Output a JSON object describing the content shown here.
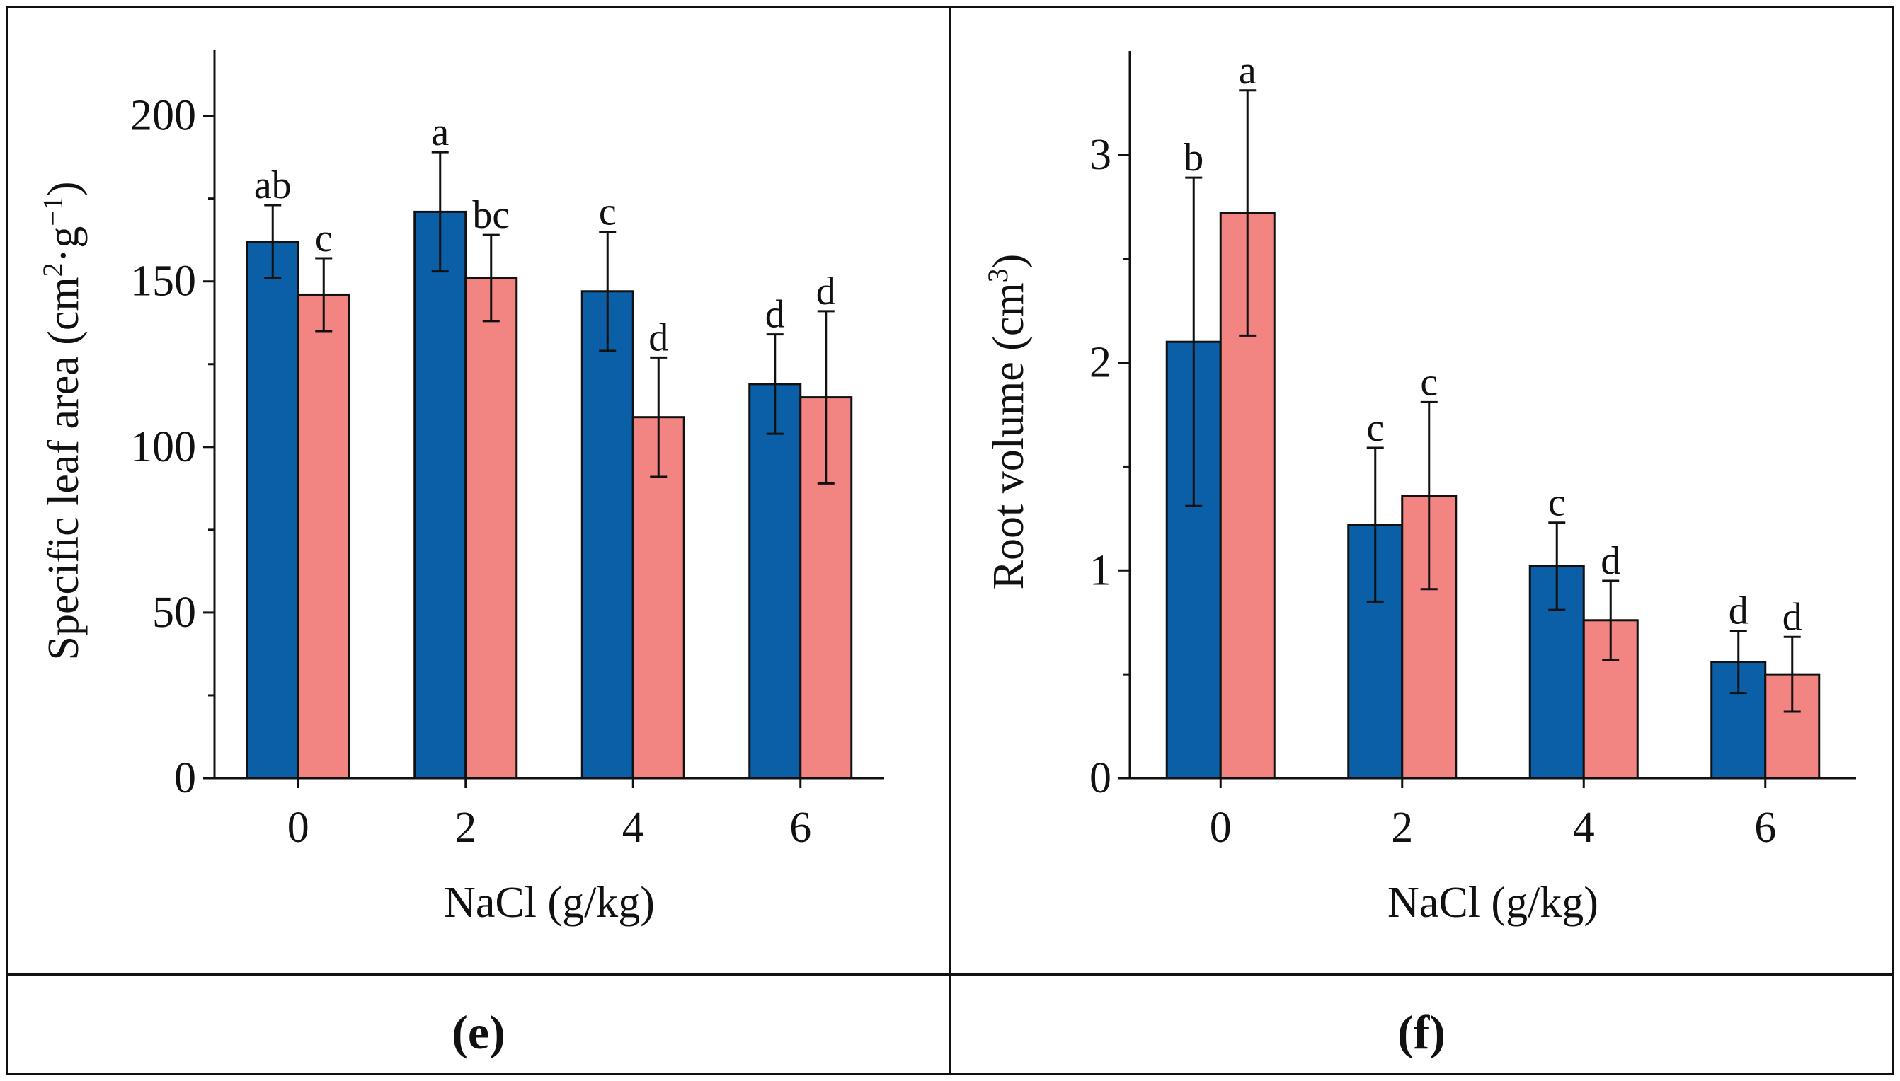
{
  "chart_data": [
    {
      "type": "bar",
      "panel_label": "(e)",
      "xlabel": "NaCl (g/kg)",
      "ylabel": {
        "prefix": "Specific leaf area (cm",
        "sup1": "2",
        "middle": "·g",
        "sup2": "−1",
        "suffix": ")"
      },
      "categories": [
        "0",
        "2",
        "4",
        "6"
      ],
      "ylim": [
        0,
        220
      ],
      "yticks": [
        0,
        50,
        100,
        150,
        200
      ],
      "yticks_labels": [
        "0",
        "50",
        "100",
        "150",
        "200"
      ],
      "series": [
        {
          "name": "series-blue",
          "color": "#0a5fa6",
          "values": [
            162,
            171,
            147,
            119
          ],
          "errors": [
            11,
            18,
            18,
            15
          ],
          "labels": [
            "ab",
            "a",
            "c",
            "d"
          ]
        },
        {
          "name": "series-pink",
          "color": "#f28482",
          "values": [
            146,
            151,
            109,
            115
          ],
          "errors": [
            11,
            13,
            18,
            26
          ],
          "labels": [
            "c",
            "bc",
            "d",
            "d"
          ]
        }
      ]
    },
    {
      "type": "bar",
      "panel_label": "(f)",
      "xlabel": "NaCl (g/kg)",
      "ylabel": {
        "prefix": "Root volume (cm",
        "sup1": "3",
        "middle": "",
        "sup2": "",
        "suffix": ")"
      },
      "categories": [
        "0",
        "2",
        "4",
        "6"
      ],
      "ylim": [
        0,
        3.5
      ],
      "yticks": [
        0,
        1,
        2,
        3
      ],
      "yticks_labels": [
        "0",
        "1",
        "2",
        "3"
      ],
      "series": [
        {
          "name": "series-blue",
          "color": "#0a5fa6",
          "values": [
            2.1,
            1.22,
            1.02,
            0.56
          ],
          "errors": [
            0.79,
            0.37,
            0.21,
            0.15
          ],
          "labels": [
            "b",
            "c",
            "c",
            "d"
          ]
        },
        {
          "name": "series-pink",
          "color": "#f28482",
          "values": [
            2.72,
            1.36,
            0.76,
            0.5
          ],
          "errors": [
            0.59,
            0.45,
            0.19,
            0.18
          ],
          "labels": [
            "a",
            "c",
            "d",
            "d"
          ]
        }
      ]
    }
  ]
}
